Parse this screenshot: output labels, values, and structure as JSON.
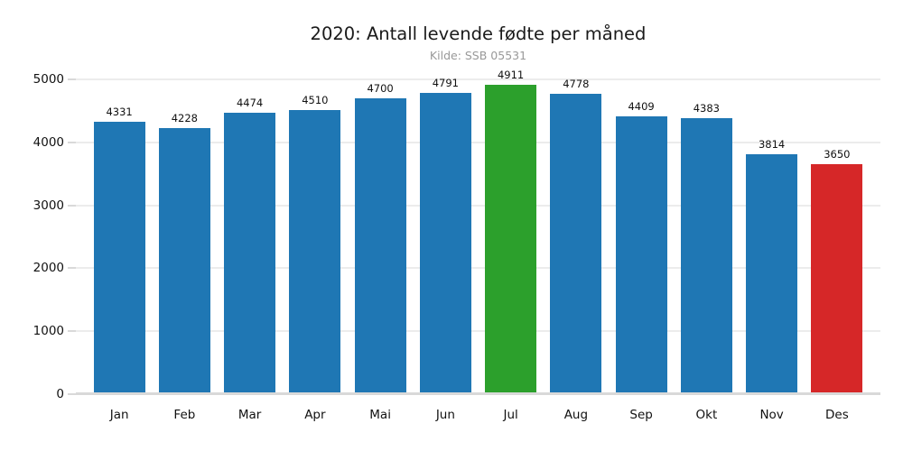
{
  "chart_data": {
    "type": "bar",
    "title": "2020: Antall levende fødte per måned",
    "subtitle": "Kilde: SSB 05531",
    "categories": [
      "Jan",
      "Feb",
      "Mar",
      "Apr",
      "Mai",
      "Jun",
      "Jul",
      "Aug",
      "Sep",
      "Okt",
      "Nov",
      "Des"
    ],
    "values": [
      4331,
      4228,
      4474,
      4510,
      4700,
      4791,
      4911,
      4778,
      4409,
      4383,
      3814,
      3650
    ],
    "bar_colors": [
      "#1f77b4",
      "#1f77b4",
      "#1f77b4",
      "#1f77b4",
      "#1f77b4",
      "#1f77b4",
      "#2ca02c",
      "#1f77b4",
      "#1f77b4",
      "#1f77b4",
      "#1f77b4",
      "#d62728"
    ],
    "highlight": {
      "max_month": "Jul",
      "max_value": 4911,
      "min_month": "Des",
      "min_value": 3650
    },
    "xlabel": "",
    "ylabel": "",
    "ylim": [
      0,
      5000
    ],
    "yticks": [
      0,
      1000,
      2000,
      3000,
      4000,
      5000
    ],
    "grid": "horizontal-only",
    "value_labels_on_bars": true,
    "legend": "none",
    "palette": {
      "bar_default": "#1f77b4",
      "bar_highlight_max": "#2ca02c",
      "bar_highlight_min": "#d62728",
      "grid": "#ececec",
      "axis_line": "#d9d9d9",
      "tick": "#d9d9d9",
      "title_text": "#1a1a1a",
      "subtitle_text": "#999999",
      "label_text": "#111111"
    }
  }
}
